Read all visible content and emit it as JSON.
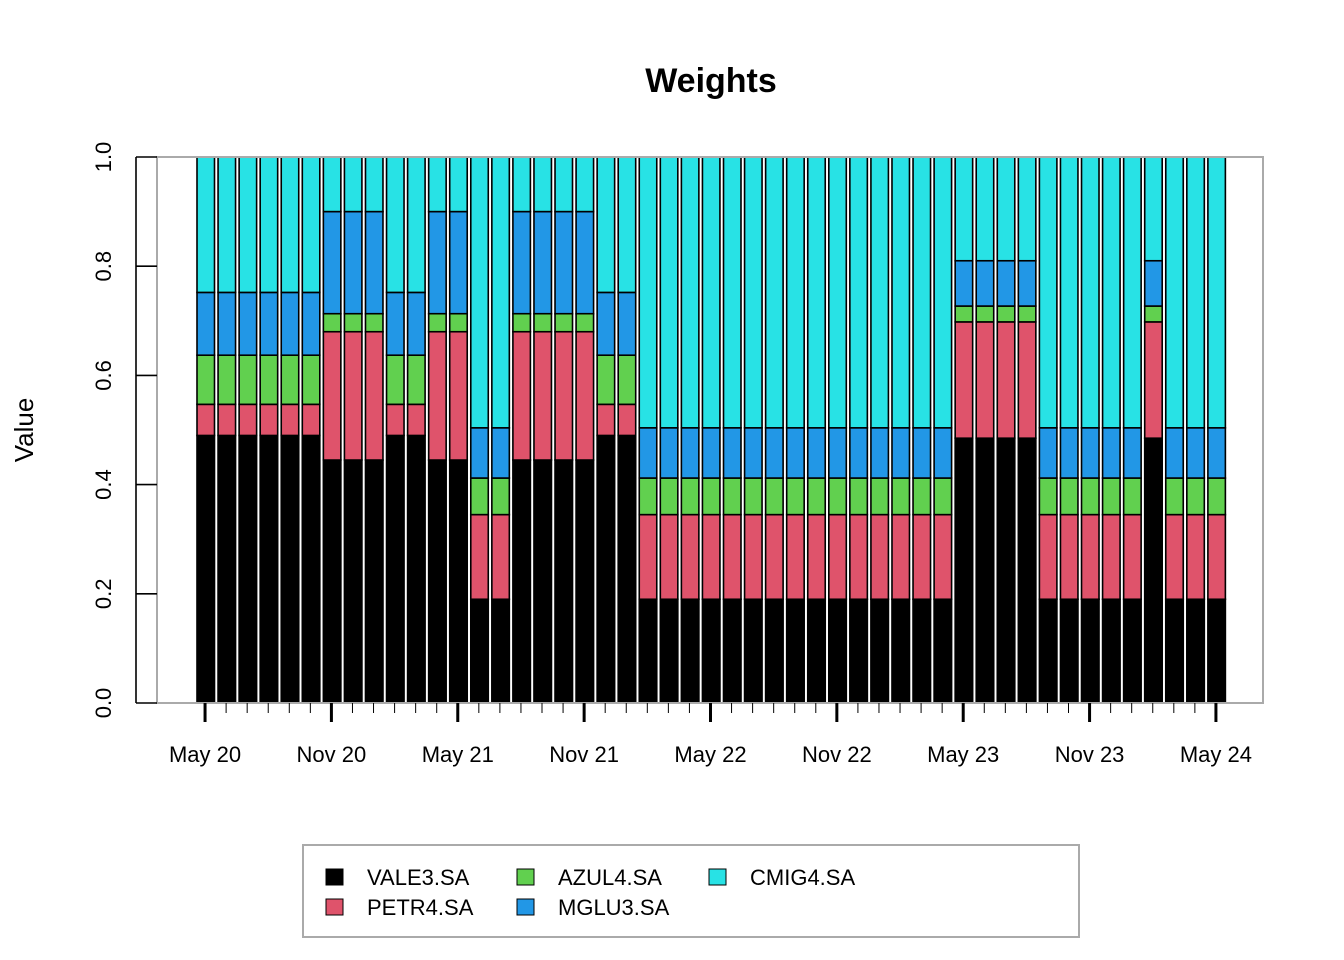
{
  "chart_data": {
    "type": "bar",
    "stacked": true,
    "title": "Weights",
    "xlabel": "",
    "ylabel": "Value",
    "ylim": [
      0,
      1
    ],
    "yticks": [
      0.0,
      0.2,
      0.4,
      0.6,
      0.8,
      1.0
    ],
    "ytick_labels": [
      "0.0",
      "0.2",
      "0.4",
      "0.6",
      "0.8",
      "1.0"
    ],
    "x_start_month": "2020-05",
    "x_period": "monthly",
    "xtick_labels": [
      "May 20",
      "Nov 20",
      "May 21",
      "Nov 21",
      "May 22",
      "Nov 22",
      "May 23",
      "Nov 23",
      "May 24"
    ],
    "xtick_months": [
      "2020-05",
      "2020-11",
      "2021-05",
      "2021-11",
      "2022-05",
      "2022-11",
      "2023-05",
      "2023-11",
      "2024-05"
    ],
    "grid": false,
    "legend_position": "bottom-center",
    "series": [
      {
        "name": "VALE3.SA",
        "color": "#000000",
        "values": [
          0.49,
          0.49,
          0.49,
          0.49,
          0.49,
          0.49,
          0.445,
          0.445,
          0.445,
          0.49,
          0.49,
          0.445,
          0.445,
          0.19,
          0.19,
          0.445,
          0.445,
          0.445,
          0.445,
          0.49,
          0.49,
          0.19,
          0.19,
          0.19,
          0.19,
          0.19,
          0.19,
          0.19,
          0.19,
          0.19,
          0.19,
          0.19,
          0.19,
          0.19,
          0.19,
          0.19,
          0.485,
          0.485,
          0.485,
          0.485,
          0.19,
          0.19,
          0.19,
          0.19,
          0.19,
          0.485,
          0.19,
          0.19,
          0.19
        ]
      },
      {
        "name": "PETR4.SA",
        "color": "#DF536B",
        "values": [
          0.057,
          0.057,
          0.057,
          0.057,
          0.057,
          0.057,
          0.235,
          0.235,
          0.235,
          0.057,
          0.057,
          0.235,
          0.235,
          0.155,
          0.155,
          0.235,
          0.235,
          0.235,
          0.235,
          0.057,
          0.057,
          0.155,
          0.155,
          0.155,
          0.155,
          0.155,
          0.155,
          0.155,
          0.155,
          0.155,
          0.155,
          0.155,
          0.155,
          0.155,
          0.155,
          0.155,
          0.213,
          0.213,
          0.213,
          0.213,
          0.155,
          0.155,
          0.155,
          0.155,
          0.155,
          0.213,
          0.155,
          0.155,
          0.155
        ]
      },
      {
        "name": "AZUL4.SA",
        "color": "#61D04F",
        "values": [
          0.09,
          0.09,
          0.09,
          0.09,
          0.09,
          0.09,
          0.033,
          0.033,
          0.033,
          0.09,
          0.09,
          0.033,
          0.033,
          0.067,
          0.067,
          0.033,
          0.033,
          0.033,
          0.033,
          0.09,
          0.09,
          0.067,
          0.067,
          0.067,
          0.067,
          0.067,
          0.067,
          0.067,
          0.067,
          0.067,
          0.067,
          0.067,
          0.067,
          0.067,
          0.067,
          0.067,
          0.029,
          0.029,
          0.029,
          0.029,
          0.067,
          0.067,
          0.067,
          0.067,
          0.067,
          0.029,
          0.067,
          0.067,
          0.067
        ]
      },
      {
        "name": "MGLU3.SA",
        "color": "#2297E6",
        "values": [
          0.115,
          0.115,
          0.115,
          0.115,
          0.115,
          0.115,
          0.187,
          0.187,
          0.187,
          0.115,
          0.115,
          0.187,
          0.187,
          0.092,
          0.092,
          0.187,
          0.187,
          0.187,
          0.187,
          0.115,
          0.115,
          0.092,
          0.092,
          0.092,
          0.092,
          0.092,
          0.092,
          0.092,
          0.092,
          0.092,
          0.092,
          0.092,
          0.092,
          0.092,
          0.092,
          0.092,
          0.083,
          0.083,
          0.083,
          0.083,
          0.092,
          0.092,
          0.092,
          0.092,
          0.092,
          0.083,
          0.092,
          0.092,
          0.092
        ]
      },
      {
        "name": "CMIG4.SA",
        "color": "#28E2E5",
        "values": [
          0.248,
          0.248,
          0.248,
          0.248,
          0.248,
          0.248,
          0.1,
          0.1,
          0.1,
          0.248,
          0.248,
          0.1,
          0.1,
          0.496,
          0.496,
          0.1,
          0.1,
          0.1,
          0.1,
          0.248,
          0.248,
          0.496,
          0.496,
          0.496,
          0.496,
          0.496,
          0.496,
          0.496,
          0.496,
          0.496,
          0.496,
          0.496,
          0.496,
          0.496,
          0.496,
          0.496,
          0.19,
          0.19,
          0.19,
          0.19,
          0.496,
          0.496,
          0.496,
          0.496,
          0.496,
          0.19,
          0.496,
          0.496,
          0.496
        ]
      }
    ]
  }
}
